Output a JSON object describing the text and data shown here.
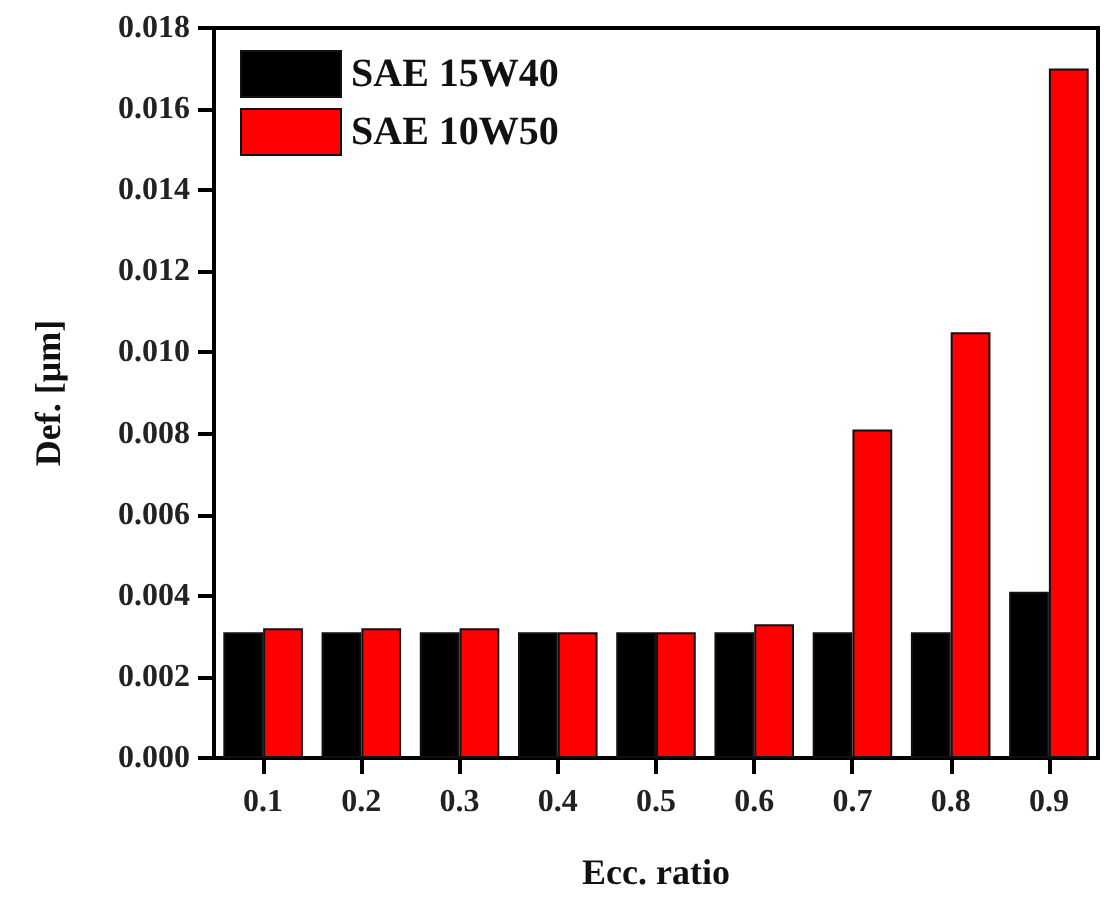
{
  "chart_data": {
    "type": "bar",
    "xlabel": "Ecc. ratio",
    "ylabel": "Def. [μm]",
    "categories": [
      "0.1",
      "0.2",
      "0.3",
      "0.4",
      "0.5",
      "0.6",
      "0.7",
      "0.8",
      "0.9"
    ],
    "series": [
      {
        "name": "SAE 15W40",
        "color": "#000000",
        "values": [
          0.0031,
          0.0031,
          0.0031,
          0.0031,
          0.0031,
          0.0031,
          0.0031,
          0.0031,
          0.0041
        ]
      },
      {
        "name": "SAE 10W50",
        "color": "#ff0000",
        "values": [
          0.0032,
          0.0032,
          0.0032,
          0.0031,
          0.0031,
          0.0033,
          0.0081,
          0.0105,
          0.017
        ]
      }
    ],
    "ylim": [
      0,
      0.018
    ],
    "yticks": [
      {
        "value": 0,
        "label": "0.000"
      },
      {
        "value": 0.002,
        "label": "0.002"
      },
      {
        "value": 0.004,
        "label": "0.004"
      },
      {
        "value": 0.006,
        "label": "0.006"
      },
      {
        "value": 0.008,
        "label": "0.008"
      },
      {
        "value": 0.01,
        "label": "0.010"
      },
      {
        "value": 0.012,
        "label": "0.012"
      },
      {
        "value": 0.014,
        "label": "0.014"
      },
      {
        "value": 0.016,
        "label": "0.016"
      },
      {
        "value": 0.018,
        "label": "0.018"
      }
    ],
    "legend": "top left"
  }
}
